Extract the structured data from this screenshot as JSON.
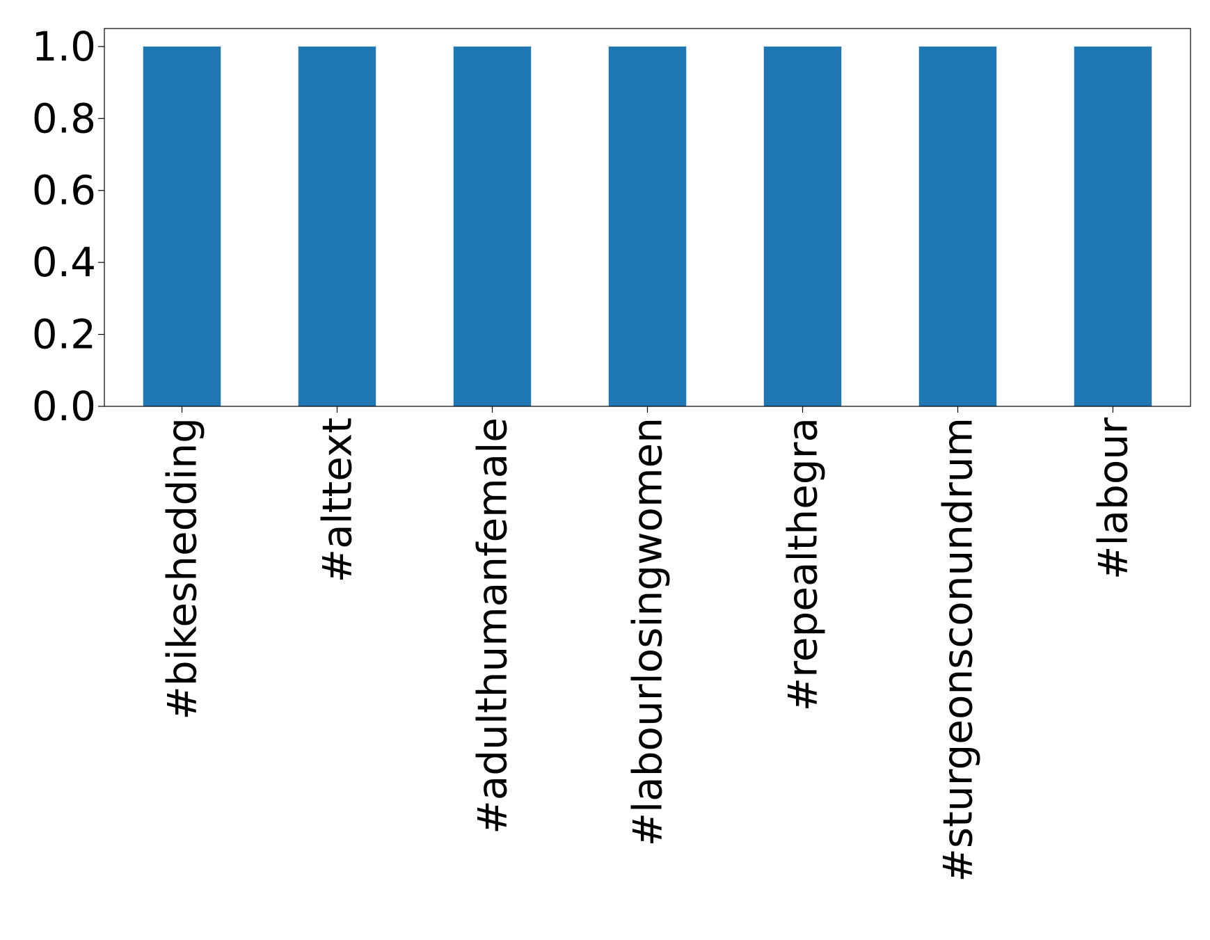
{
  "chart_data": {
    "type": "bar",
    "title": "",
    "xlabel": "",
    "ylabel": "",
    "categories": [
      "#bikeshedding",
      "#alttext",
      "#adulthumanfemale",
      "#labourlosingwomen",
      "#repealthegra",
      "#sturgeonsconundrum",
      "#labour"
    ],
    "values": [
      1.0,
      1.0,
      1.0,
      1.0,
      1.0,
      1.0,
      1.0
    ],
    "ylim": [
      0,
      1.05
    ],
    "yticks": [
      0.0,
      0.2,
      0.4,
      0.6,
      0.8,
      1.0
    ],
    "ytick_labels": [
      "0.0",
      "0.2",
      "0.4",
      "0.6",
      "0.8",
      "1.0"
    ],
    "grid": false,
    "legend": "none",
    "bar_color": "#1f77b4"
  }
}
